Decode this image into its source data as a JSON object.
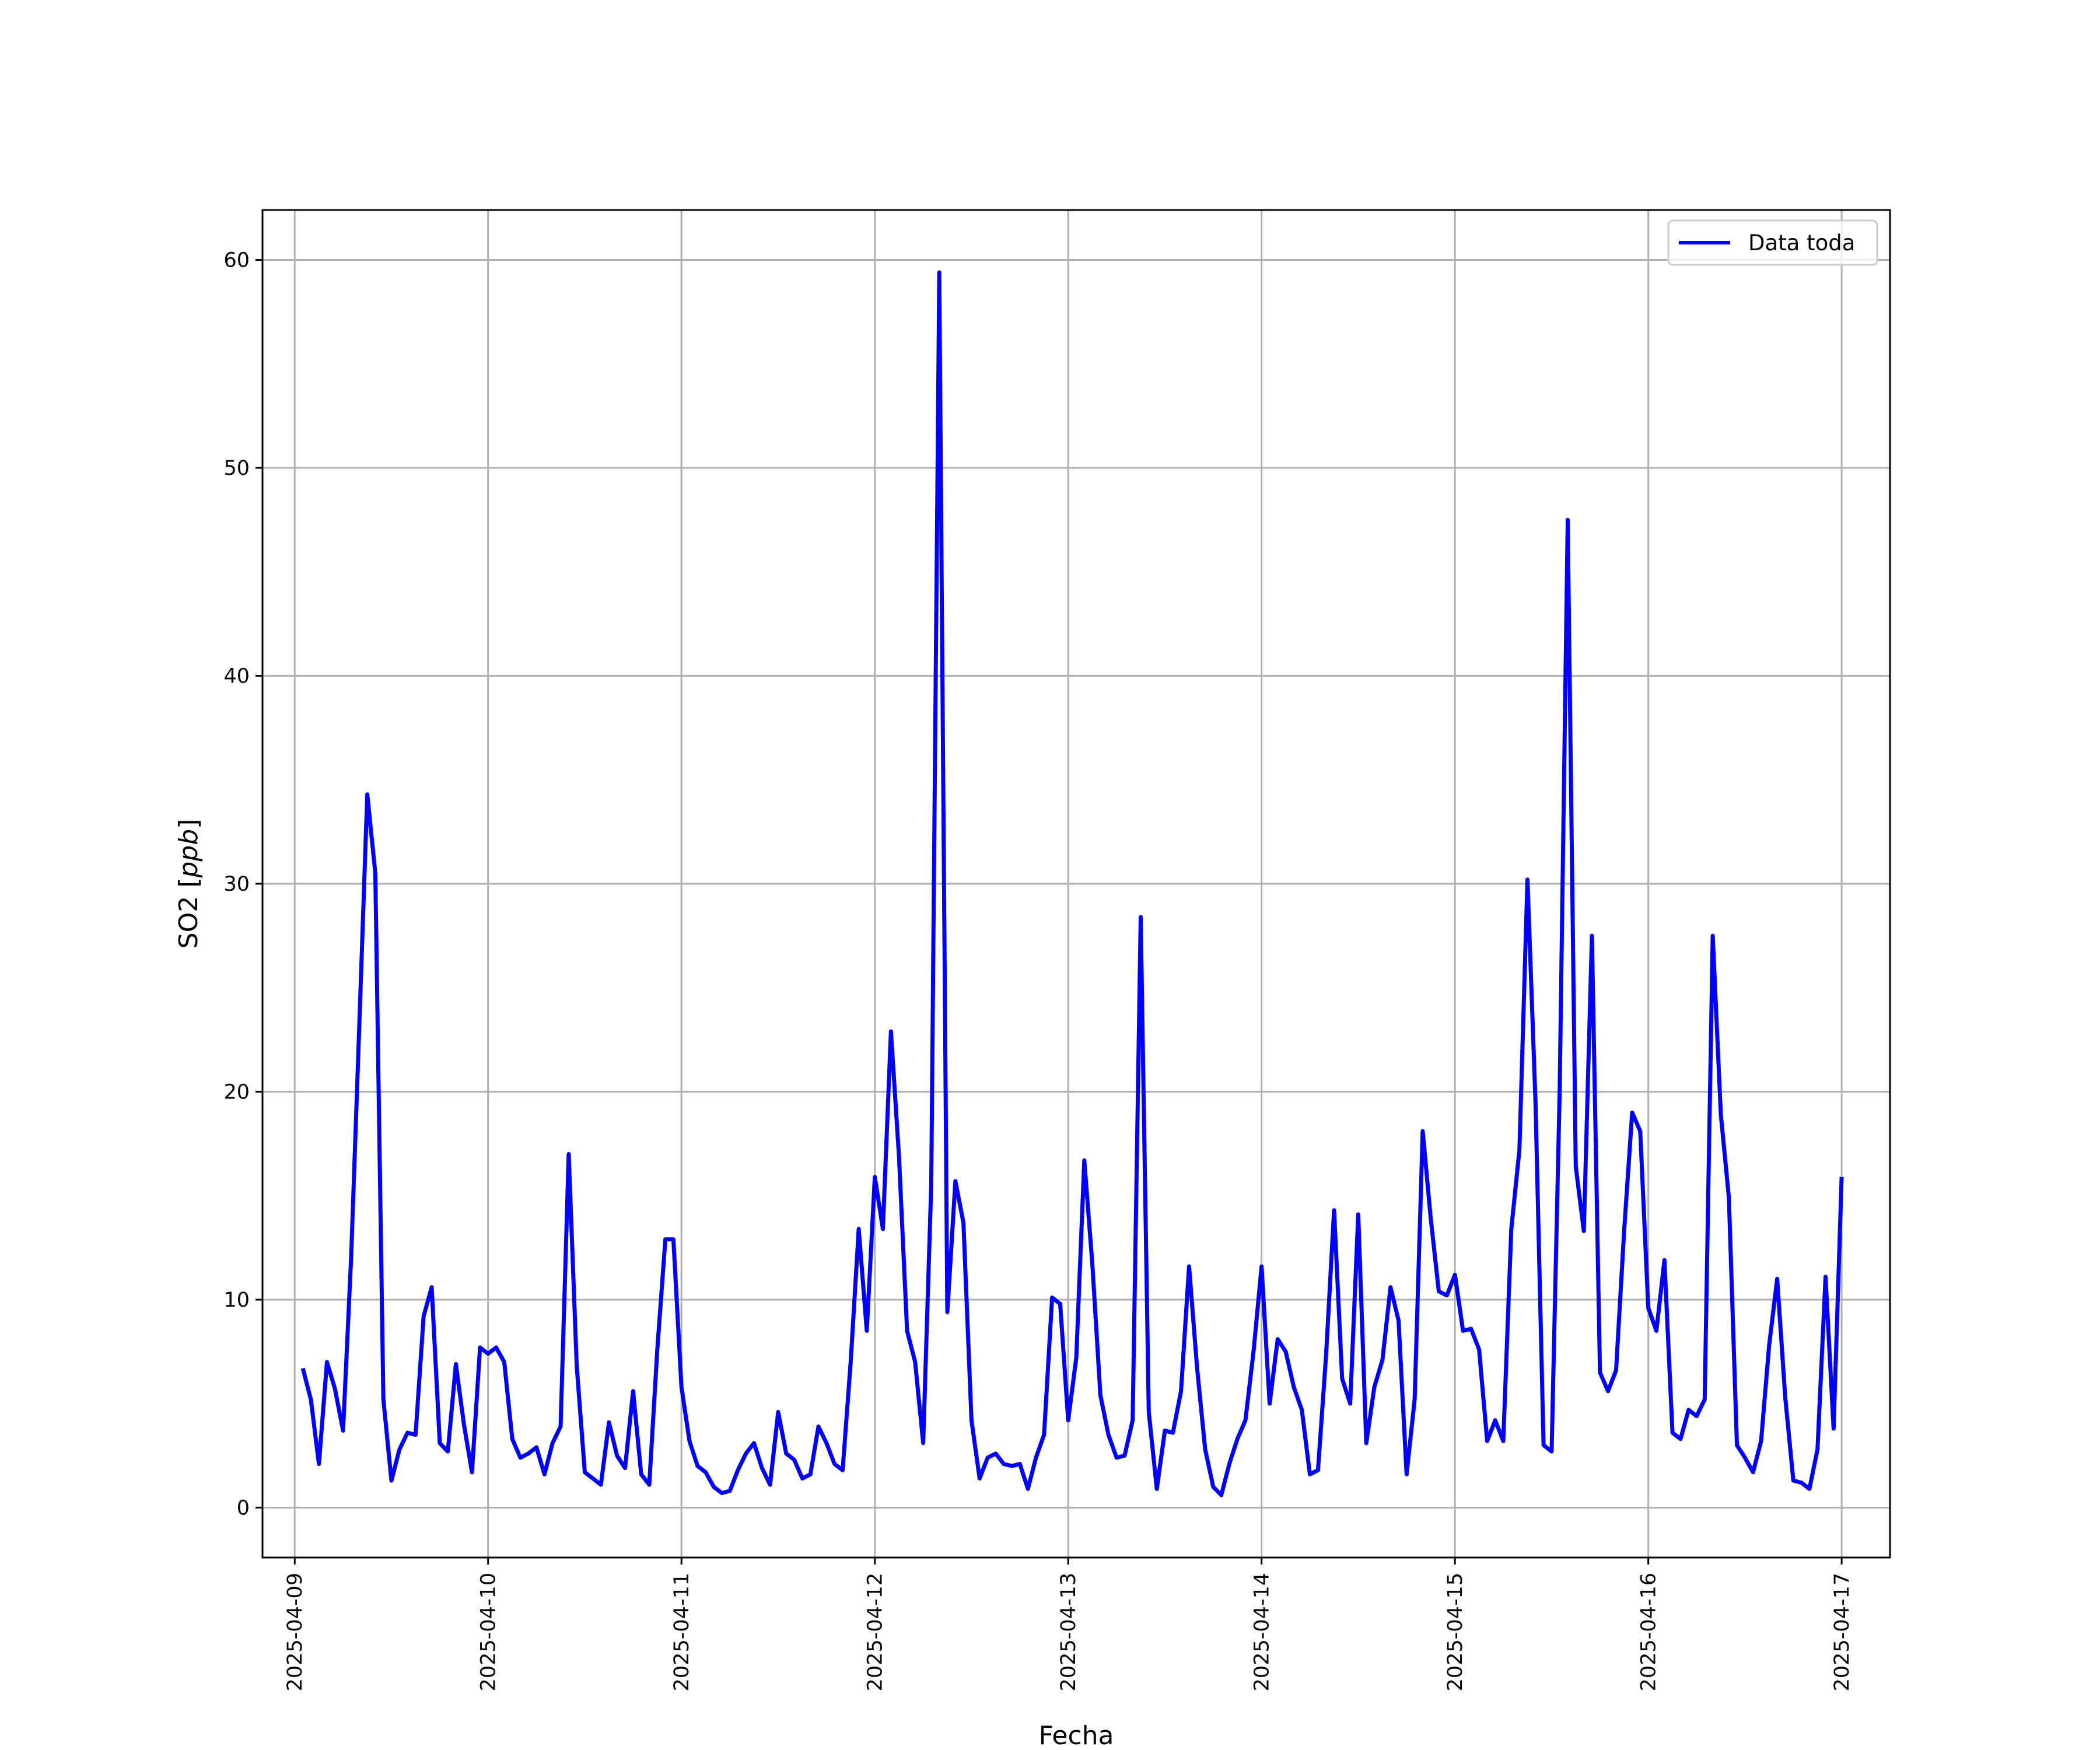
{
  "chart_data": {
    "type": "line",
    "title": "",
    "xlabel": "Fecha",
    "ylabel": "SO2 [",
    "ylabel_unit": "ppb",
    "ylabel_close": "]",
    "grid": true,
    "legend_position": "top-right",
    "xlim": [
      "2025-04-08T20:00",
      "2025-04-17T06:00"
    ],
    "ylim": [
      -2.4,
      62.4
    ],
    "x_ticks": [
      "2025-04-09",
      "2025-04-10",
      "2025-04-11",
      "2025-04-12",
      "2025-04-13",
      "2025-04-14",
      "2025-04-15",
      "2025-04-16",
      "2025-04-17"
    ],
    "y_ticks": [
      0,
      10,
      20,
      30,
      40,
      50,
      60
    ],
    "series": [
      {
        "name": "Data toda",
        "color": "#0000ff",
        "start": "2025-04-09T01:00",
        "interval_hours": 1,
        "values": [
          6.7,
          5.2,
          2.1,
          7.0,
          5.7,
          3.7,
          12.0,
          23.0,
          34.3,
          30.5,
          5.2,
          1.3,
          2.8,
          3.6,
          3.5,
          9.2,
          10.6,
          3.1,
          2.7,
          6.9,
          4.0,
          1.7,
          7.7,
          7.4,
          7.7,
          7.0,
          3.3,
          2.4,
          2.6,
          2.9,
          1.6,
          3.1,
          3.9,
          17.0,
          6.8,
          1.7,
          1.4,
          1.1,
          4.1,
          2.5,
          1.9,
          5.6,
          1.6,
          1.1,
          7.6,
          12.9,
          12.9,
          5.8,
          3.2,
          2.0,
          1.7,
          1.0,
          0.7,
          0.8,
          1.8,
          2.6,
          3.1,
          1.9,
          1.1,
          4.6,
          2.6,
          2.3,
          1.4,
          1.6,
          3.9,
          3.1,
          2.1,
          1.8,
          7.0,
          13.4,
          8.5,
          15.9,
          13.4,
          22.9,
          16.9,
          8.5,
          7.0,
          3.1,
          15.5,
          59.4,
          9.4,
          15.7,
          13.7,
          4.2,
          1.4,
          2.4,
          2.6,
          2.1,
          2.0,
          2.1,
          0.9,
          2.4,
          3.5,
          10.1,
          9.8,
          4.2,
          7.2,
          16.7,
          11.7,
          5.4,
          3.5,
          2.4,
          2.5,
          4.2,
          28.4,
          4.6,
          0.9,
          3.7,
          3.6,
          5.6,
          11.6,
          6.7,
          2.8,
          1.0,
          0.6,
          2.1,
          3.3,
          4.2,
          7.5,
          11.6,
          5.0,
          8.1,
          7.5,
          5.8,
          4.7,
          1.6,
          1.8,
          7.3,
          14.3,
          6.2,
          5.0,
          14.1,
          3.1,
          5.8,
          7.1,
          10.6,
          9.0,
          1.6,
          5.2,
          18.1,
          13.9,
          10.4,
          10.2,
          11.2,
          8.5,
          8.6,
          7.6,
          3.2,
          4.2,
          3.2,
          13.4,
          17.2,
          30.2,
          19.5,
          3.0,
          2.7,
          20.0,
          47.5,
          16.4,
          13.3,
          27.5,
          6.5,
          5.6,
          6.6,
          13.3,
          19.0,
          18.1,
          9.6,
          8.5,
          11.9,
          3.6,
          3.3,
          4.7,
          4.4,
          5.2,
          27.5,
          18.9,
          14.9,
          3.0,
          2.4,
          1.7,
          3.2,
          7.8,
          11.0,
          5.3,
          1.3,
          1.2,
          0.9,
          2.8,
          11.1,
          3.8,
          15.9
        ]
      }
    ]
  }
}
